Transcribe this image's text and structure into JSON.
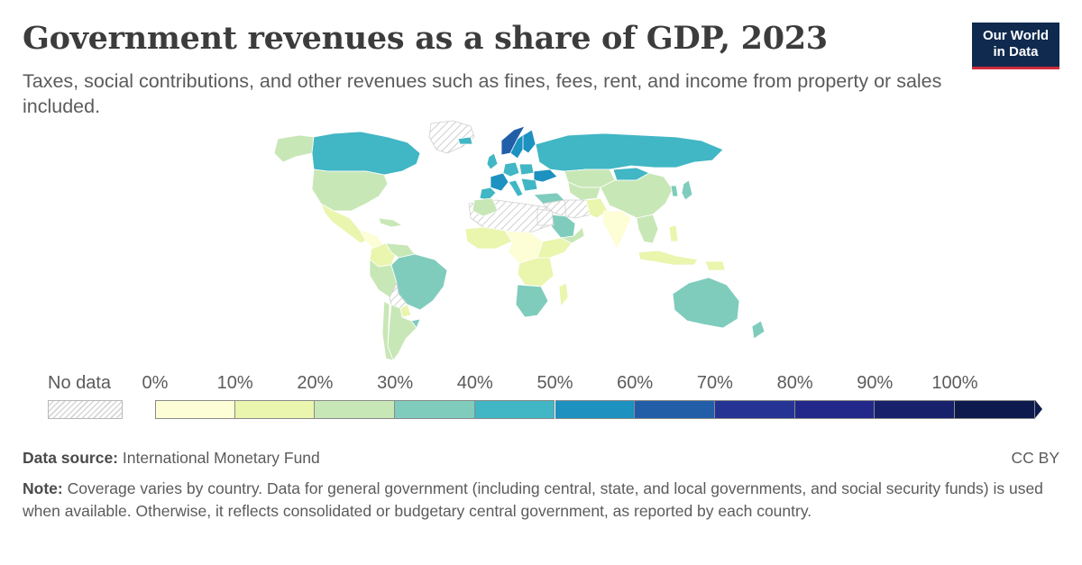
{
  "header": {
    "title": "Government revenues as a share of GDP, 2023",
    "subtitle": "Taxes, social contributions, and other revenues such as fines, fees, rent, and income from property or sales included."
  },
  "logo": {
    "line1": "Our World",
    "line2": "in Data"
  },
  "legend": {
    "no_data_label": "No data",
    "ticks": [
      "0%",
      "10%",
      "20%",
      "30%",
      "40%",
      "50%",
      "60%",
      "70%",
      "80%",
      "90%",
      "100%"
    ],
    "bin_colors": [
      "#fdfdd6",
      "#eaf5ad",
      "#c8e7b6",
      "#7fccbd",
      "#41b6c4",
      "#1d91c0",
      "#225ea8",
      "#253494",
      "#22288a",
      "#17206b",
      "#0d1a4e"
    ]
  },
  "colors": {
    "no_data": "#e3e3e3",
    "border": "#ffffff",
    "title": "#3c3c3c",
    "logo_bg": "#0f2a4e",
    "logo_accent": "#cf2b39"
  },
  "footer": {
    "source_label": "Data source:",
    "source_text": "International Monetary Fund",
    "license": "CC BY",
    "note_label": "Note:",
    "note_text": "Coverage varies by country. Data for general government (including central, state, and local governments, and social security funds) is used when available. Otherwise, it reflects consolidated or budgetary central government, as reported by each country."
  }
}
